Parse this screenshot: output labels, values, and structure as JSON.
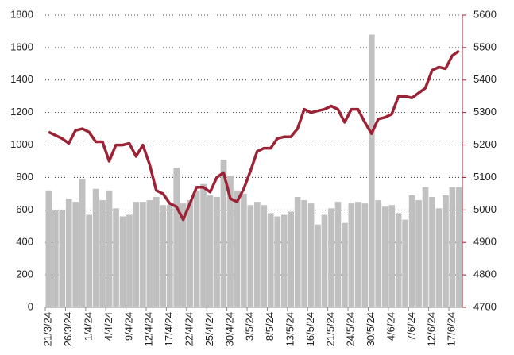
{
  "chart_data": {
    "type": "bar-line",
    "categories": [
      "21/3/24",
      null,
      null,
      "26/3/24",
      null,
      null,
      "1/4/24",
      null,
      null,
      "4/4/24",
      null,
      null,
      "9/4/24",
      null,
      null,
      "12/4/24",
      null,
      null,
      "17/4/24",
      null,
      null,
      "22/4/24",
      null,
      null,
      "25/4/24",
      null,
      null,
      "30/4/24",
      null,
      null,
      "3/5/24",
      null,
      null,
      "8/5/24",
      null,
      null,
      "13/5/24",
      null,
      null,
      "16/5/24",
      null,
      null,
      "21/5/24",
      null,
      null,
      "24/5/24",
      null,
      null,
      "30/5/24",
      null,
      null,
      "4/6/24",
      null,
      null,
      "7/6/24",
      null,
      null,
      "12/6/24",
      null,
      null,
      "17/6/24",
      null
    ],
    "series": [
      {
        "type": "bar",
        "color": "#c0c0c0",
        "values": [
          720,
          600,
          600,
          670,
          650,
          790,
          570,
          730,
          660,
          720,
          610,
          560,
          570,
          650,
          650,
          660,
          680,
          630,
          630,
          860,
          640,
          660,
          720,
          760,
          690,
          680,
          910,
          810,
          720,
          700,
          630,
          650,
          630,
          580,
          560,
          570,
          590,
          680,
          660,
          640,
          510,
          570,
          610,
          650,
          520,
          640,
          650,
          640,
          1680,
          660,
          620,
          630,
          580,
          540,
          690,
          660,
          740,
          680,
          610,
          690,
          740,
          740
        ]
      },
      {
        "type": "line",
        "axis": "y2",
        "color": "#9b2335",
        "values": [
          5240,
          5230,
          5220,
          5205,
          5245,
          5250,
          5240,
          5210,
          5210,
          5150,
          5200,
          5200,
          5205,
          5165,
          5200,
          5140,
          5060,
          5050,
          5020,
          5010,
          4970,
          5020,
          5070,
          5070,
          5055,
          5100,
          5115,
          5035,
          5025,
          5065,
          5120,
          5180,
          5190,
          5190,
          5220,
          5225,
          5225,
          5250,
          5310,
          5300,
          5305,
          5310,
          5320,
          5310,
          5270,
          5310,
          5310,
          5270,
          5235,
          5280,
          5285,
          5295,
          5350,
          5350,
          5345,
          5360,
          5375,
          5430,
          5440,
          5435,
          5475,
          5490
        ]
      }
    ],
    "ylim": [
      0,
      1800
    ],
    "yticks": [
      0,
      200,
      400,
      600,
      800,
      1000,
      1200,
      1400,
      1600,
      1800
    ],
    "y2lim": [
      4700,
      5600
    ],
    "y2ticks": [
      4700,
      4800,
      4900,
      5000,
      5100,
      5200,
      5300,
      5400,
      5500,
      5600
    ],
    "grid": true,
    "grid_color": "#9b2335"
  }
}
